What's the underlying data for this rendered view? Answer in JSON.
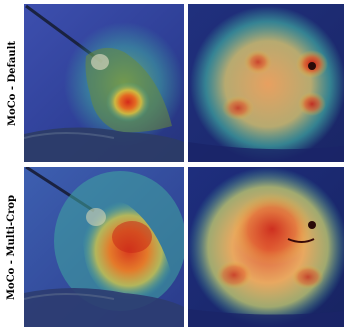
{
  "rows": [
    {
      "label": "MoCo - Default"
    },
    {
      "label": "MoCo - Multi-Crop"
    }
  ],
  "colors": {
    "heat_low": "#2a3a9a",
    "heat_mid": "#3fa8a0",
    "heat_warm": "#e8d23a",
    "heat_hot": "#d42a1a"
  }
}
